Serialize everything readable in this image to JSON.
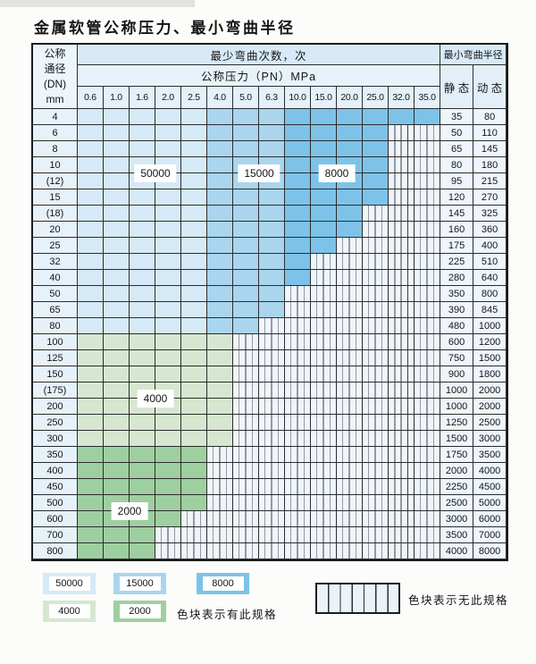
{
  "title": "金属软管公称压力、最小弯曲半径",
  "table": {
    "corner_header_lines": [
      "公称",
      "通径",
      "(DN)",
      "mm"
    ],
    "bend_cycles_header": "最少弯曲次数，次",
    "pressure_header": "公称压力（PN）MPa",
    "pressure_columns": [
      "0.6",
      "1.0",
      "1.6",
      "2.0",
      "2.5",
      "4.0",
      "5.0",
      "6.3",
      "10.0",
      "15.0",
      "20.0",
      "25.0",
      "32.0",
      "35.0"
    ],
    "radius_header": "最小弯曲半径",
    "static_header": "静 态",
    "dynamic_header": "动 态",
    "zones": {
      "50000": "#d6e9f6",
      "15000": "#aad5ee",
      "8000": "#7dc3e9",
      "4000": "#d6e7d0",
      "2000": "#9ecfa0"
    },
    "blue_zone_breaks": [
      {
        "max_col_index": 4,
        "zone": "50000"
      },
      {
        "max_col_index": 7,
        "zone": "15000"
      },
      {
        "max_col_index": 13,
        "zone": "8000"
      }
    ],
    "rows": [
      {
        "dn": "4",
        "palette": "blue",
        "last_available_col": 13,
        "static": "35",
        "dynamic": "80"
      },
      {
        "dn": "6",
        "palette": "blue",
        "last_available_col": 11,
        "static": "50",
        "dynamic": "110"
      },
      {
        "dn": "8",
        "palette": "blue",
        "last_available_col": 11,
        "static": "65",
        "dynamic": "145"
      },
      {
        "dn": "10",
        "palette": "blue",
        "last_available_col": 11,
        "static": "80",
        "dynamic": "180"
      },
      {
        "dn": "(12)",
        "palette": "blue",
        "last_available_col": 11,
        "static": "95",
        "dynamic": "215"
      },
      {
        "dn": "15",
        "palette": "blue",
        "last_available_col": 11,
        "static": "120",
        "dynamic": "270"
      },
      {
        "dn": "(18)",
        "palette": "blue",
        "last_available_col": 10,
        "static": "145",
        "dynamic": "325"
      },
      {
        "dn": "20",
        "palette": "blue",
        "last_available_col": 10,
        "static": "160",
        "dynamic": "360"
      },
      {
        "dn": "25",
        "palette": "blue",
        "last_available_col": 9,
        "static": "175",
        "dynamic": "400"
      },
      {
        "dn": "32",
        "palette": "blue",
        "last_available_col": 8,
        "static": "225",
        "dynamic": "510"
      },
      {
        "dn": "40",
        "palette": "blue",
        "last_available_col": 8,
        "static": "280",
        "dynamic": "640"
      },
      {
        "dn": "50",
        "palette": "blue",
        "last_available_col": 7,
        "static": "350",
        "dynamic": "800"
      },
      {
        "dn": "65",
        "palette": "blue",
        "last_available_col": 7,
        "static": "390",
        "dynamic": "845"
      },
      {
        "dn": "80",
        "palette": "blue",
        "last_available_col": 6,
        "static": "480",
        "dynamic": "1000"
      },
      {
        "dn": "100",
        "palette": "4000",
        "last_available_col": 5,
        "static": "600",
        "dynamic": "1200"
      },
      {
        "dn": "125",
        "palette": "4000",
        "last_available_col": 5,
        "static": "750",
        "dynamic": "1500"
      },
      {
        "dn": "150",
        "palette": "4000",
        "last_available_col": 5,
        "static": "900",
        "dynamic": "1800"
      },
      {
        "dn": "(175)",
        "palette": "4000",
        "last_available_col": 5,
        "static": "1000",
        "dynamic": "2000"
      },
      {
        "dn": "200",
        "palette": "4000",
        "last_available_col": 5,
        "static": "1000",
        "dynamic": "2000"
      },
      {
        "dn": "250",
        "palette": "4000",
        "last_available_col": 5,
        "static": "1250",
        "dynamic": "2500"
      },
      {
        "dn": "300",
        "palette": "4000",
        "last_available_col": 5,
        "static": "1500",
        "dynamic": "3000"
      },
      {
        "dn": "350",
        "palette": "2000",
        "last_available_col": 4,
        "static": "1750",
        "dynamic": "3500"
      },
      {
        "dn": "400",
        "palette": "2000",
        "last_available_col": 4,
        "static": "2000",
        "dynamic": "4000"
      },
      {
        "dn": "450",
        "palette": "2000",
        "last_available_col": 4,
        "static": "2250",
        "dynamic": "4500"
      },
      {
        "dn": "500",
        "palette": "2000",
        "last_available_col": 4,
        "static": "2500",
        "dynamic": "5000"
      },
      {
        "dn": "600",
        "palette": "2000",
        "last_available_col": 3,
        "static": "3000",
        "dynamic": "6000"
      },
      {
        "dn": "700",
        "palette": "2000",
        "last_available_col": 2,
        "static": "3500",
        "dynamic": "7000"
      },
      {
        "dn": "800",
        "palette": "2000",
        "last_available_col": 2,
        "static": "4000",
        "dynamic": "8000"
      }
    ],
    "zone_labels": [
      {
        "text": "50000",
        "row_below_index": 4,
        "col_right_index": 3
      },
      {
        "text": "15000",
        "row_below_index": 4,
        "col_right_index": 7
      },
      {
        "text": "8000",
        "row_below_index": 4,
        "col_right_index": 10
      },
      {
        "text": "4000",
        "row_below_index": 18,
        "col_right_index": 3
      },
      {
        "text": "2000",
        "row_below_index": 25,
        "col_right_index": 2
      }
    ]
  },
  "legend": {
    "available_label": "色块表示有此规格",
    "unavailable_label": "色块表示无此规格",
    "swatches": [
      {
        "value": "50000",
        "zone": "50000"
      },
      {
        "value": "15000",
        "zone": "15000"
      },
      {
        "value": "8000",
        "zone": "8000"
      },
      {
        "value": "4000",
        "zone": "4000"
      },
      {
        "value": "2000",
        "zone": "2000"
      }
    ]
  }
}
